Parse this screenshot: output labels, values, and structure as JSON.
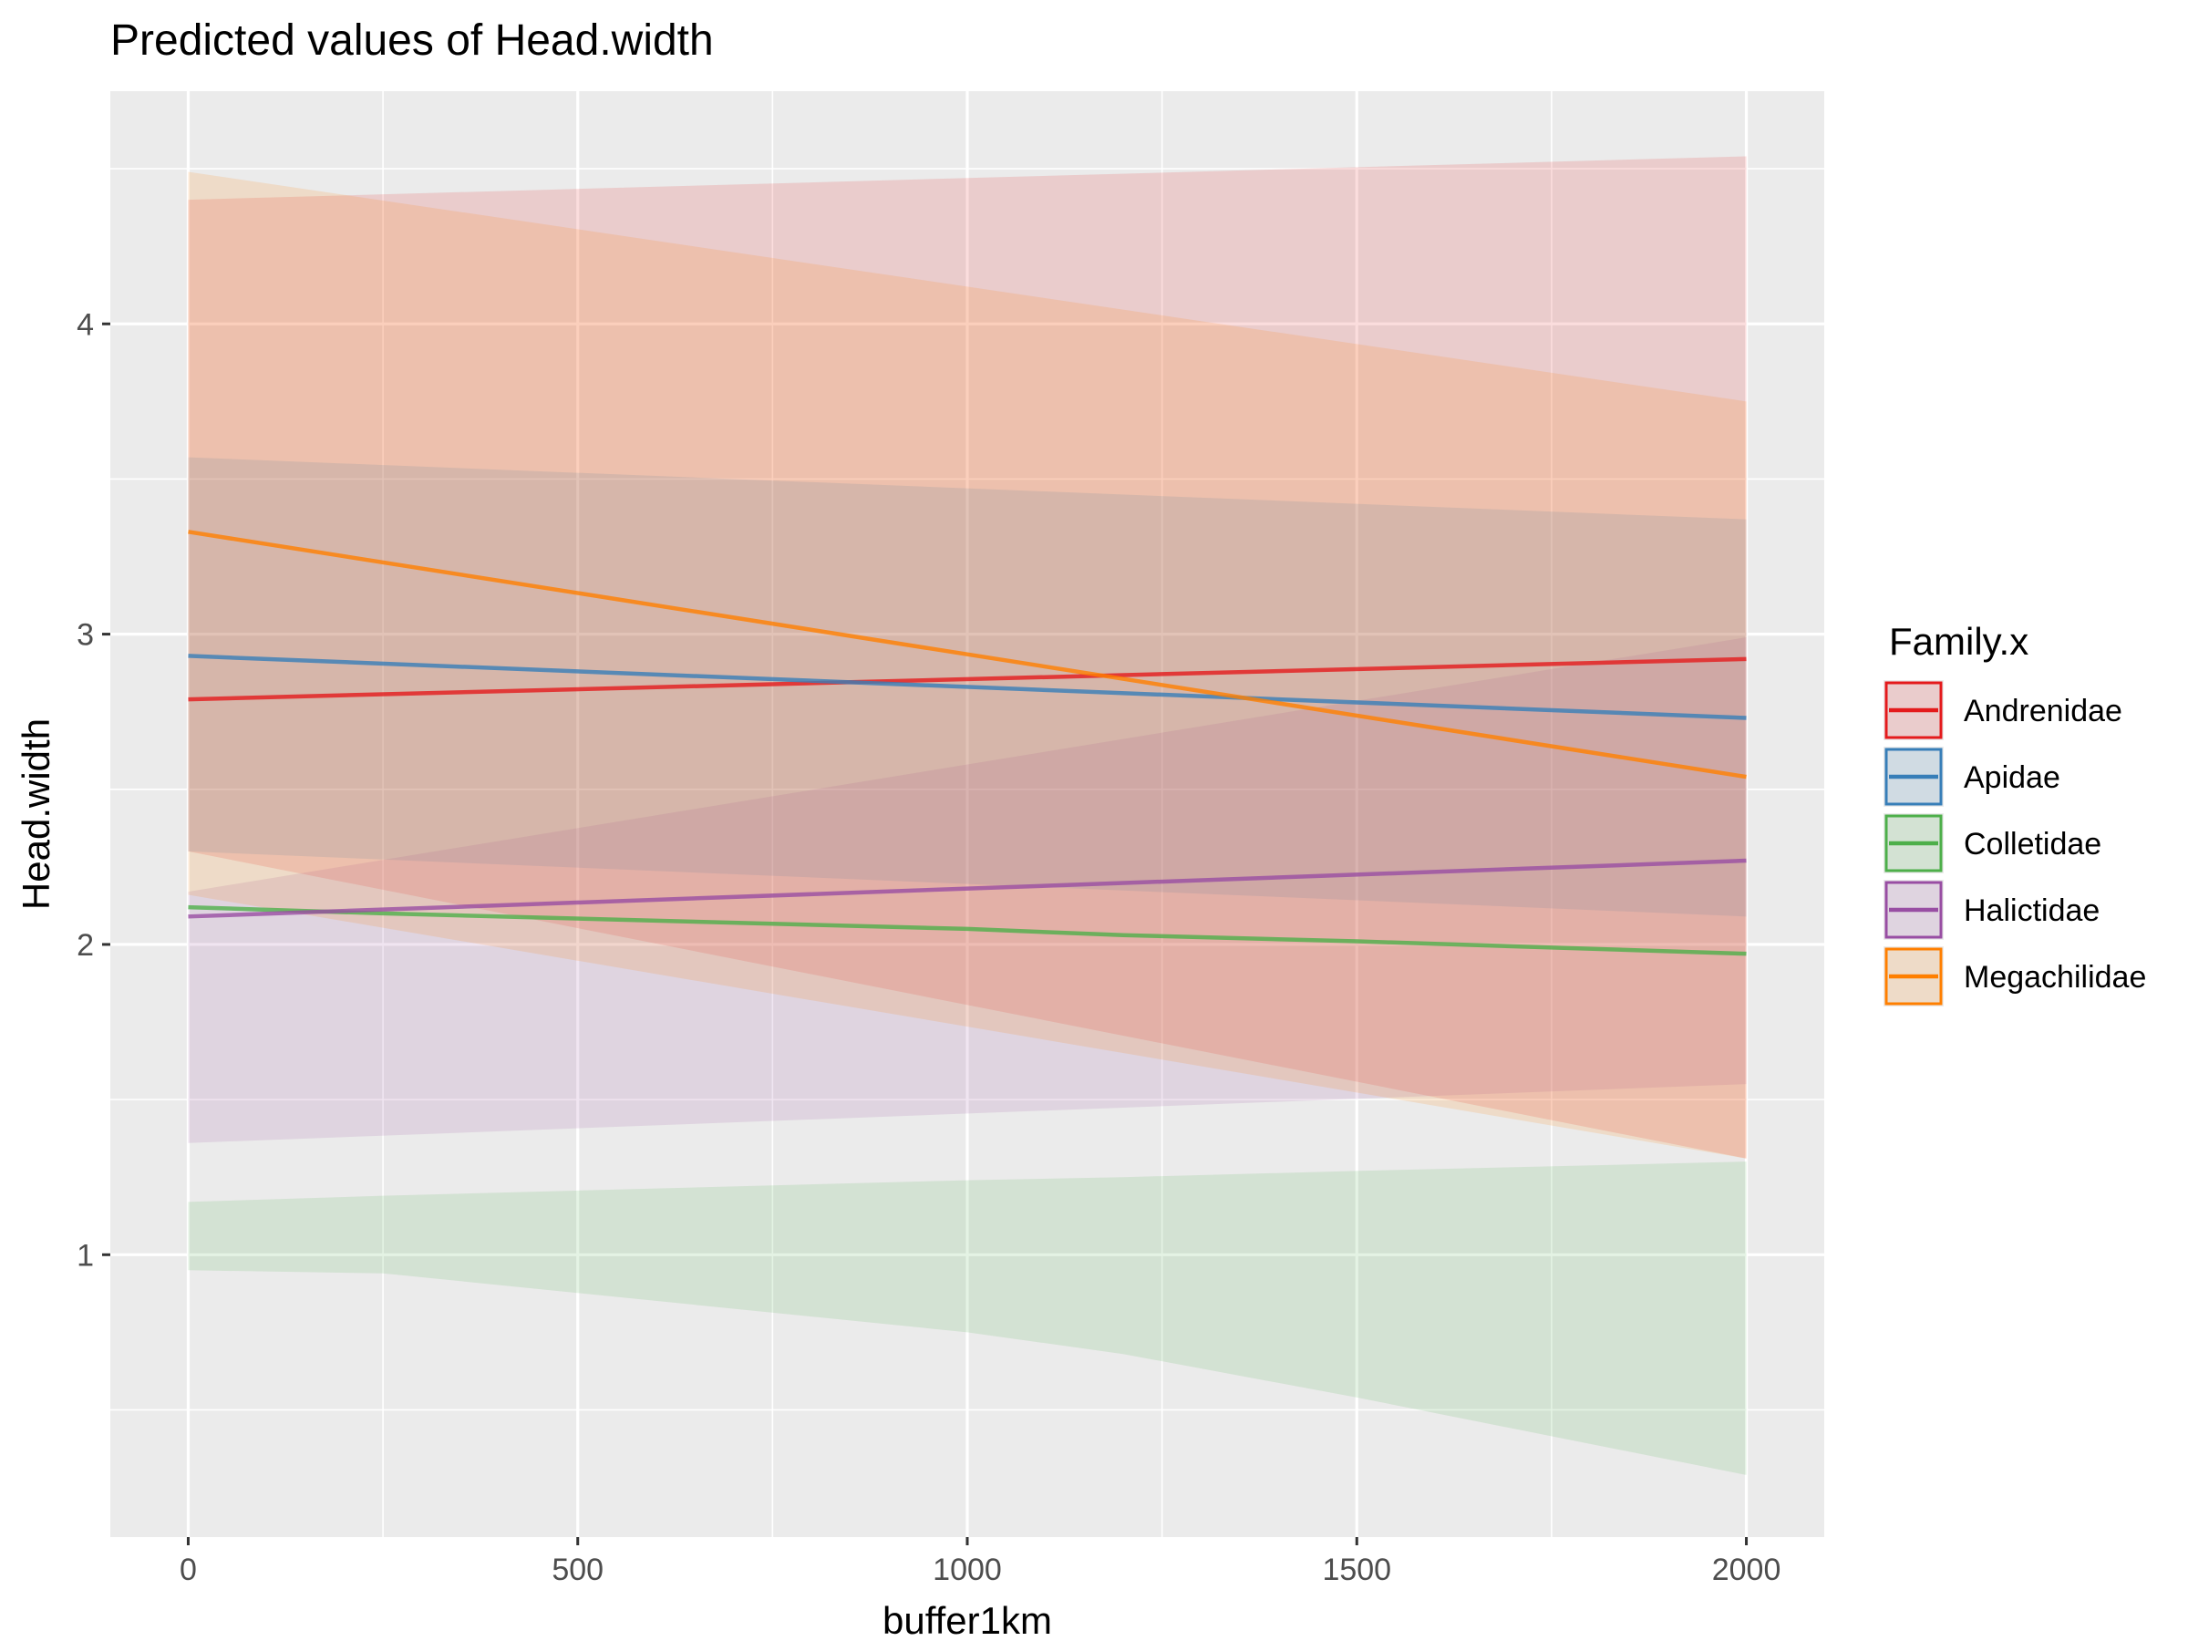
{
  "chart_data": {
    "type": "line",
    "title": "Predicted values of Head.width",
    "xlabel": "buffer1km",
    "ylabel": "Head.width",
    "xlim": [
      -100,
      2100
    ],
    "ylim": [
      0.09,
      4.75
    ],
    "x_ticks": [
      0,
      500,
      1000,
      1500,
      2000
    ],
    "x_tick_labels": [
      "0",
      "500",
      "1000",
      "1500",
      "2000"
    ],
    "y_ticks": [
      1,
      2,
      3,
      4
    ],
    "y_tick_labels": [
      "1",
      "2",
      "3",
      "4"
    ],
    "x_minor_ticks": [
      250,
      750,
      1250,
      1750
    ],
    "y_minor_ticks": [
      0.5,
      1.5,
      2.5,
      3.5,
      4.5
    ],
    "grid": true,
    "legend": {
      "title": "Family.x",
      "position": "right"
    },
    "series": [
      {
        "name": "Andrenidae",
        "color": "#e41a1c",
        "x": [
          0,
          2000
        ],
        "y": [
          2.79,
          2.92
        ],
        "ci_x": [
          0,
          2000
        ],
        "ci_low": [
          2.3,
          1.31
        ],
        "ci_high": [
          4.4,
          4.54
        ]
      },
      {
        "name": "Apidae",
        "color": "#377eb8",
        "x": [
          0,
          2000
        ],
        "y": [
          2.93,
          2.73
        ],
        "ci_x": [
          0,
          2000
        ],
        "ci_low": [
          2.3,
          2.09
        ],
        "ci_high": [
          3.57,
          3.37
        ]
      },
      {
        "name": "Colletidae",
        "color": "#4daf4a",
        "x": [
          0,
          250,
          1000,
          1200,
          1500,
          2000
        ],
        "y": [
          2.12,
          2.1,
          2.05,
          2.03,
          2.01,
          1.97
        ],
        "ci_x": [
          0,
          250,
          1000,
          1200,
          1500,
          2000
        ],
        "ci_low": [
          0.95,
          0.94,
          0.75,
          0.68,
          0.54,
          0.29
        ],
        "ci_high": [
          1.17,
          1.19,
          1.24,
          1.25,
          1.27,
          1.3
        ]
      },
      {
        "name": "Halictidae",
        "color": "#984ea3",
        "x": [
          0,
          2000
        ],
        "y": [
          2.09,
          2.27
        ],
        "ci_x": [
          0,
          2000
        ],
        "ci_low": [
          1.36,
          1.55
        ],
        "ci_high": [
          2.17,
          2.99
        ]
      },
      {
        "name": "Megachilidae",
        "color": "#ff7f00",
        "x": [
          0,
          2000
        ],
        "y": [
          3.33,
          2.54
        ],
        "ci_x": [
          0,
          2000
        ],
        "ci_low": [
          2.16,
          1.31
        ],
        "ci_high": [
          4.49,
          3.75
        ]
      }
    ]
  }
}
